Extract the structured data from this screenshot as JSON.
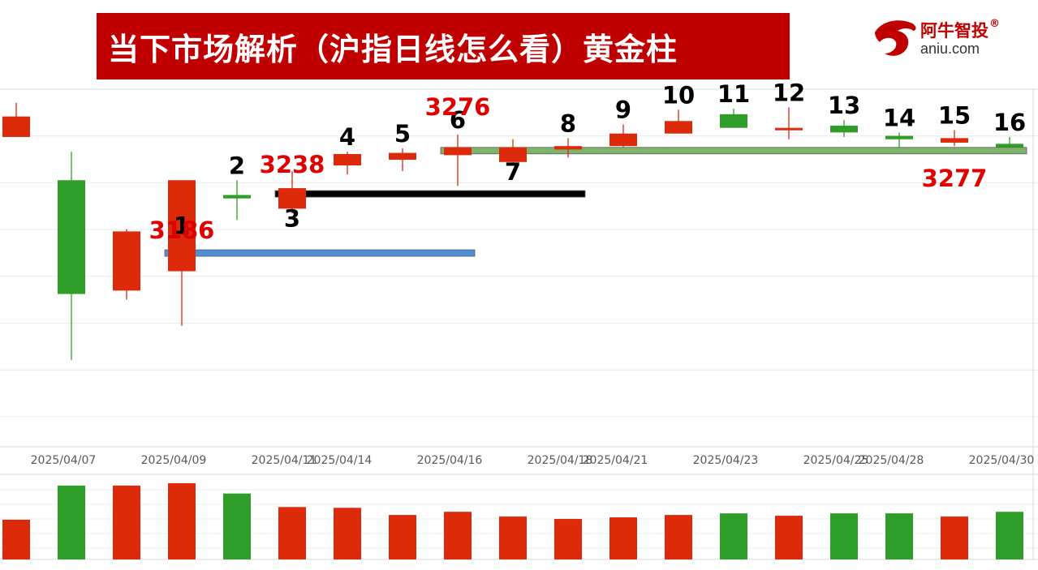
{
  "title": "当下市场解析（沪指日线怎么看）黄金柱",
  "logo": {
    "name": "阿牛智投",
    "registered": "®",
    "domain": "aniu.com"
  },
  "colors": {
    "up": "#dc2a0b",
    "down": "#2f9e28",
    "banner": "#c00000",
    "price_label": "#e00000",
    "support_blue": "#4f8fd6",
    "support_black": "#000000",
    "support_green": "#7fb56a"
  },
  "chart_data": {
    "type": "candlestick",
    "dates": [
      "2025/04/07",
      "2025/04/08",
      "2025/04/09",
      "2025/04/10",
      "2025/04/11",
      "2025/04/14",
      "2025/04/15",
      "2025/04/16",
      "2025/04/17",
      "2025/04/18",
      "2025/04/21",
      "2025/04/22",
      "2025/04/23",
      "2025/04/24",
      "2025/04/25",
      "2025/04/28",
      "2025/04/29",
      "2025/04/30",
      "2025/05/06"
    ],
    "x_tick_labels": [
      {
        "index": 1,
        "text": "2025/04/07"
      },
      {
        "index": 3,
        "text": "2025/04/09"
      },
      {
        "index": 5,
        "text": "2025/04/11"
      },
      {
        "index": 6,
        "text": "2025/04/14"
      },
      {
        "index": 8,
        "text": "2025/04/16"
      },
      {
        "index": 10,
        "text": "2025/04/18"
      },
      {
        "index": 11,
        "text": "2025/04/21"
      },
      {
        "index": 13,
        "text": "2025/04/23"
      },
      {
        "index": 15,
        "text": "2025/04/25"
      },
      {
        "index": 16,
        "text": "2025/04/28"
      },
      {
        "index": 18,
        "text": "2025/04/30"
      }
    ],
    "ylim": [
      3020,
      3330
    ],
    "candles": [
      {
        "open": 3288,
        "close": 3306,
        "high": 3318,
        "low": 3288,
        "dir": "up"
      },
      {
        "open": 3250,
        "close": 3150,
        "high": 3275,
        "low": 3092,
        "dir": "down"
      },
      {
        "open": 3153,
        "close": 3205,
        "high": 3207,
        "low": 3145,
        "dir": "up"
      },
      {
        "open": 3170,
        "close": 3250,
        "high": 3250,
        "low": 3122,
        "dir": "up"
      },
      {
        "open": 3237,
        "close": 3234,
        "high": 3250,
        "low": 3215,
        "dir": "down"
      },
      {
        "open": 3225,
        "close": 3243,
        "high": 3258,
        "low": 3221,
        "dir": "up"
      },
      {
        "open": 3263,
        "close": 3273,
        "high": 3275,
        "low": 3255,
        "dir": "up"
      },
      {
        "open": 3268,
        "close": 3274,
        "high": 3278,
        "low": 3258,
        "dir": "up"
      },
      {
        "open": 3272,
        "close": 3279,
        "high": 3290,
        "low": 3245,
        "dir": "up"
      },
      {
        "open": 3266,
        "close": 3279,
        "high": 3286,
        "low": 3264,
        "dir": "up"
      },
      {
        "open": 3277,
        "close": 3280,
        "high": 3287,
        "low": 3270,
        "dir": "up"
      },
      {
        "open": 3280,
        "close": 3291,
        "high": 3299,
        "low": 3279,
        "dir": "up"
      },
      {
        "open": 3291,
        "close": 3302,
        "high": 3312,
        "low": 3291,
        "dir": "up"
      },
      {
        "open": 3308,
        "close": 3296,
        "high": 3313,
        "low": 3296,
        "dir": "down"
      },
      {
        "open": 3295,
        "close": 3296,
        "high": 3314,
        "low": 3286,
        "dir": "up"
      },
      {
        "open": 3298,
        "close": 3292,
        "high": 3303,
        "low": 3288,
        "dir": "down"
      },
      {
        "open": 3289,
        "close": 3286,
        "high": 3292,
        "low": 3279,
        "dir": "down"
      },
      {
        "open": 3283,
        "close": 3287,
        "high": 3294,
        "low": 3280,
        "dir": "up"
      },
      {
        "open": 3282,
        "close": 3279,
        "high": 3288,
        "low": 3279,
        "dir": "down"
      }
    ],
    "volume": {
      "ylim": [
        0,
        100
      ],
      "values": [
        50,
        93,
        93,
        96,
        83,
        66,
        65,
        56,
        60,
        54,
        51,
        53,
        56,
        58,
        55,
        58,
        58,
        54,
        60
      ]
    },
    "candle_numbers": [
      {
        "index": 3,
        "text": "1"
      },
      {
        "index": 4,
        "text": "2"
      },
      {
        "index": 5,
        "text": "3"
      },
      {
        "index": 6,
        "text": "4"
      },
      {
        "index": 7,
        "text": "5"
      },
      {
        "index": 8,
        "text": "6"
      },
      {
        "index": 9,
        "text": "7"
      },
      {
        "index": 10,
        "text": "8"
      },
      {
        "index": 11,
        "text": "9"
      },
      {
        "index": 12,
        "text": "10"
      },
      {
        "index": 13,
        "text": "11"
      },
      {
        "index": 14,
        "text": "12"
      },
      {
        "index": 15,
        "text": "13"
      },
      {
        "index": 16,
        "text": "14"
      },
      {
        "index": 17,
        "text": "15"
      },
      {
        "index": 18,
        "text": "16"
      }
    ],
    "price_annotations": [
      "3186",
      "3238",
      "3276",
      "3277"
    ],
    "support_lines": [
      {
        "label": "3186",
        "value": 3186,
        "from_index": 3,
        "to_index": 8,
        "color": "#4f8fd6"
      },
      {
        "label": "3238",
        "value": 3238,
        "from_index": 5,
        "to_index": 10,
        "color": "#000000"
      },
      {
        "label": "3276",
        "value": 3276,
        "from_index": 8,
        "to_index": 18,
        "color": "#7fb56a"
      }
    ],
    "grid": true
  }
}
